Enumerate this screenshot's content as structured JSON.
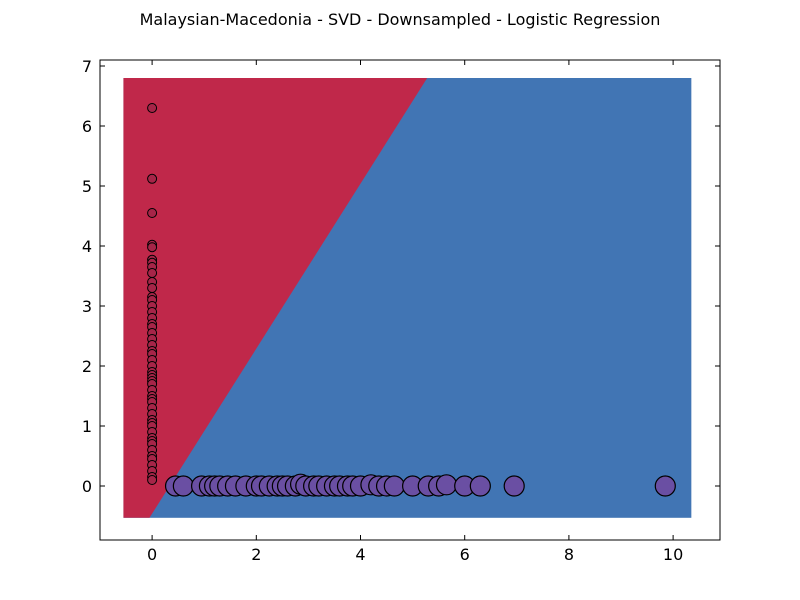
{
  "chart_data": {
    "type": "scatter",
    "title": "Malaysian-Macedonia - SVD - Downsampled - Logistic Regression",
    "xlabel": "",
    "ylabel": "",
    "xlim": [
      -1,
      10.9
    ],
    "ylim": [
      -0.9,
      7.1
    ],
    "xticks": [
      0,
      2,
      4,
      6,
      8,
      10
    ],
    "yticks": [
      0,
      1,
      2,
      3,
      4,
      5,
      6,
      7
    ],
    "grid": false,
    "legend": "none",
    "colors": {
      "region_a": "#c0284a",
      "region_b": "#4175b4",
      "class_a_marker": "#a62548",
      "class_b_marker": "#6a4fa3",
      "marker_edge": "#000000"
    },
    "decision_region": {
      "extent_x": [
        -0.55,
        10.35
      ],
      "extent_y": [
        -0.53,
        6.8
      ],
      "boundary_line": [
        [
          -0.05,
          -0.53
        ],
        [
          5.28,
          6.8
        ]
      ]
    },
    "series": [
      {
        "class": "A",
        "x": [
          0,
          0,
          0,
          0,
          0,
          0,
          0,
          0,
          0,
          0,
          0,
          0,
          0,
          0,
          0,
          0,
          0,
          0,
          0,
          0,
          0,
          0,
          0,
          0,
          0,
          0,
          0,
          0,
          0,
          0,
          0,
          0,
          0,
          0,
          0,
          0,
          0,
          0,
          0,
          0,
          0,
          0,
          0,
          0,
          0,
          0,
          0,
          0,
          0,
          0
        ],
        "y": [
          6.3,
          5.12,
          4.55,
          4.02,
          3.98,
          3.77,
          3.72,
          3.65,
          3.55,
          3.4,
          3.3,
          3.15,
          3.1,
          3.0,
          2.9,
          2.8,
          2.7,
          2.65,
          2.55,
          2.45,
          2.35,
          2.25,
          2.2,
          2.1,
          2.0,
          1.9,
          1.85,
          1.8,
          1.75,
          1.7,
          1.6,
          1.5,
          1.45,
          1.4,
          1.3,
          1.2,
          1.1,
          1.05,
          1.0,
          0.9,
          0.8,
          0.75,
          0.7,
          0.6,
          0.5,
          0.45,
          0.35,
          0.25,
          0.15,
          0.1
        ]
      },
      {
        "class": "B",
        "x": [
          0.45,
          0.6,
          0.95,
          1.1,
          1.2,
          1.3,
          1.45,
          1.6,
          1.8,
          2.0,
          2.1,
          2.25,
          2.4,
          2.5,
          2.6,
          2.75,
          2.85,
          2.95,
          3.1,
          3.2,
          3.35,
          3.5,
          3.6,
          3.75,
          3.85,
          4.0,
          4.2,
          4.35,
          4.5,
          4.65,
          5.0,
          5.3,
          5.5,
          5.65,
          6.0,
          6.3,
          6.95,
          9.85
        ],
        "y": [
          0,
          0,
          0,
          0,
          0,
          0,
          0,
          0,
          0,
          0,
          0,
          0,
          0,
          0,
          0,
          0,
          0.03,
          0,
          0,
          0,
          0,
          0,
          0,
          0,
          0,
          0,
          0.02,
          0,
          0,
          0,
          0,
          0,
          0,
          0.02,
          0,
          0,
          0,
          0
        ]
      }
    ]
  }
}
